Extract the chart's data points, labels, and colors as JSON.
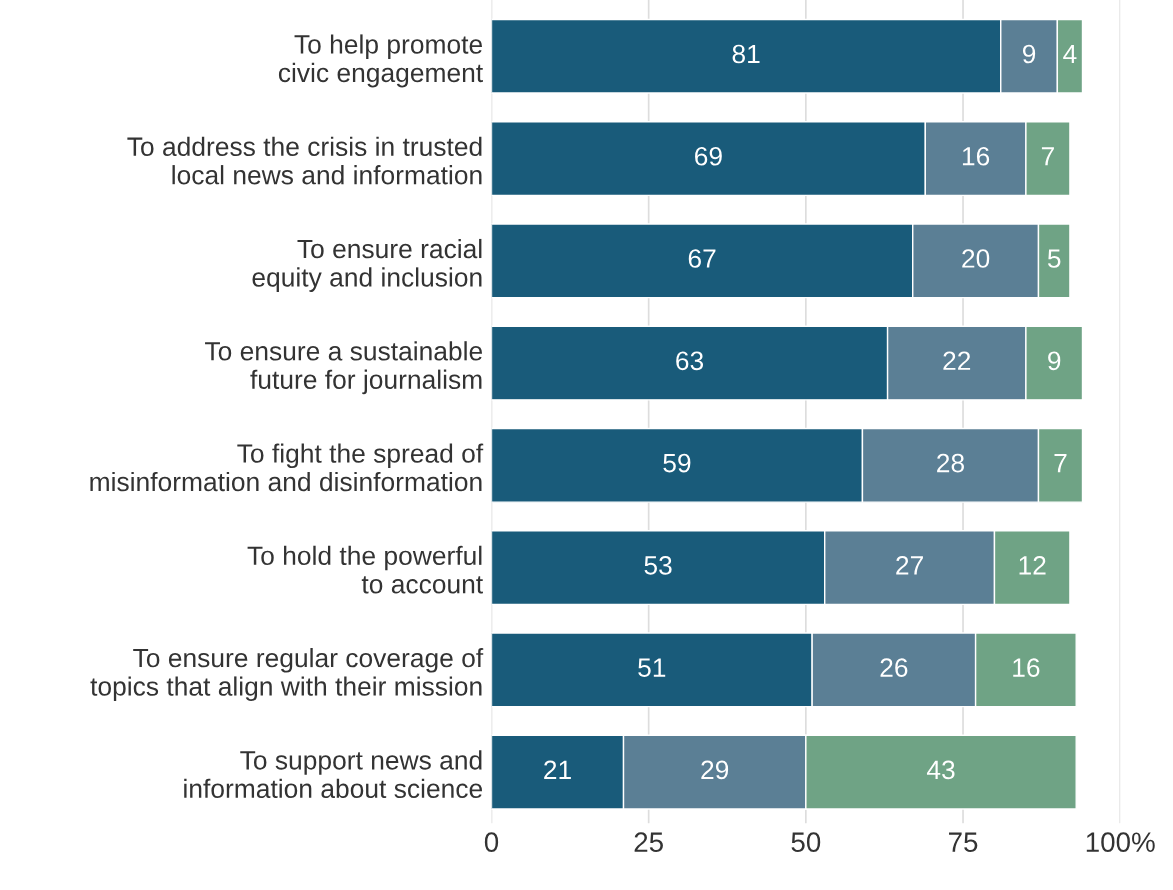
{
  "chart_data": {
    "type": "bar",
    "orientation": "horizontal",
    "stacked": true,
    "data_labels": true,
    "grid": "x",
    "legend": false,
    "categories": [
      "To help promote\ncivic engagement",
      "To address the crisis in trusted\nlocal news and information",
      "To ensure racial\nequity and inclusion",
      "To ensure a sustainable\nfuture for journalism",
      "To fight the spread of\nmisinformation and disinformation",
      "To hold the powerful\nto account",
      "To ensure regular coverage of\ntopics that align with their mission",
      "To support news and\ninformation about science"
    ],
    "series": [
      {
        "color": "#195b7a",
        "values": [
          81,
          69,
          67,
          63,
          59,
          53,
          51,
          21
        ]
      },
      {
        "color": "#5b7f95",
        "values": [
          9,
          16,
          20,
          22,
          28,
          27,
          26,
          29
        ]
      },
      {
        "color": "#6fa385",
        "values": [
          4,
          7,
          5,
          9,
          7,
          12,
          16,
          43
        ]
      }
    ],
    "xlim": [
      0,
      100
    ],
    "xticks": [
      0,
      25,
      50,
      75,
      {
        "value": 100,
        "label": "100%"
      }
    ]
  }
}
